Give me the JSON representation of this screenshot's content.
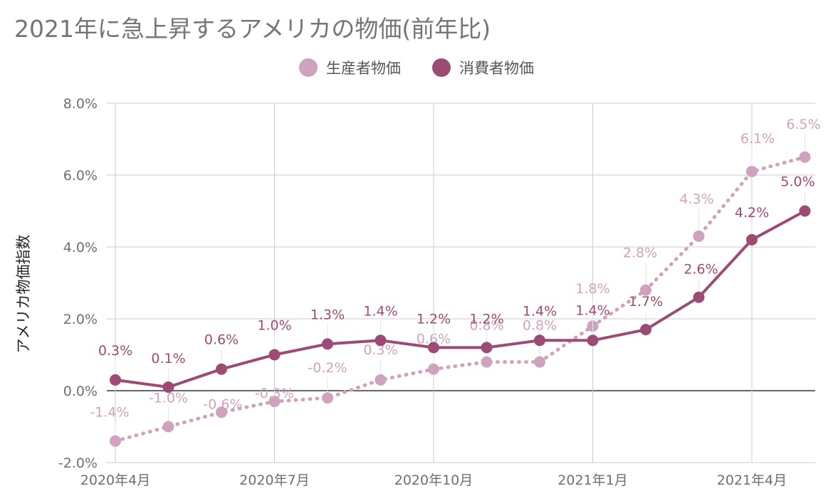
{
  "chart_data": {
    "type": "line",
    "title": "2021年に急上昇するアメリカの物価(前年比)",
    "ylabel": "アメリカ物価指数",
    "xlabel": "",
    "ylim": [
      -2.0,
      8.0
    ],
    "yticks": [
      "8.0%",
      "6.0%",
      "4.0%",
      "2.0%",
      "0.0%",
      "-2.0%"
    ],
    "ytick_values": [
      8,
      6,
      4,
      2,
      0,
      -2
    ],
    "x": [
      "2020-04",
      "2020-05",
      "2020-06",
      "2020-07",
      "2020-08",
      "2020-09",
      "2020-10",
      "2020-11",
      "2020-12",
      "2021-01",
      "2021-02",
      "2021-03",
      "2021-04",
      "2021-05"
    ],
    "xticks": [
      {
        "label": "2020年4月",
        "index": 0
      },
      {
        "label": "2020年7月",
        "index": 3
      },
      {
        "label": "2020年10月",
        "index": 6
      },
      {
        "label": "2021年1月",
        "index": 9
      },
      {
        "label": "2021年4月",
        "index": 12
      }
    ],
    "grid": true,
    "legend_position": "top",
    "series": [
      {
        "name": "生産者物価",
        "color": "#cfa3bd",
        "style": "dotted",
        "values": [
          -1.4,
          -1.0,
          -0.6,
          -0.3,
          -0.2,
          0.3,
          0.6,
          0.8,
          0.8,
          1.8,
          2.8,
          4.3,
          6.1,
          6.5
        ],
        "labels": [
          "-1.4%",
          "-1.0%",
          "-0.6%",
          "-0.3%",
          "-0.2%",
          "0.3%",
          "0.6%",
          "0.8%",
          "0.8%",
          "1.8%",
          "2.8%",
          "4.3%",
          "6.1%",
          "6.5%"
        ]
      },
      {
        "name": "消費者物価",
        "color": "#9c4b74",
        "style": "solid",
        "values": [
          0.3,
          0.1,
          0.6,
          1.0,
          1.3,
          1.4,
          1.2,
          1.2,
          1.4,
          1.4,
          1.7,
          2.6,
          4.2,
          5.0
        ],
        "labels": [
          "0.3%",
          "0.1%",
          "0.6%",
          "1.0%",
          "1.3%",
          "1.4%",
          "1.2%",
          "1.2%",
          "1.4%",
          "1.4%",
          "1.7%",
          "2.6%",
          "4.2%",
          "5.0%"
        ]
      }
    ]
  }
}
